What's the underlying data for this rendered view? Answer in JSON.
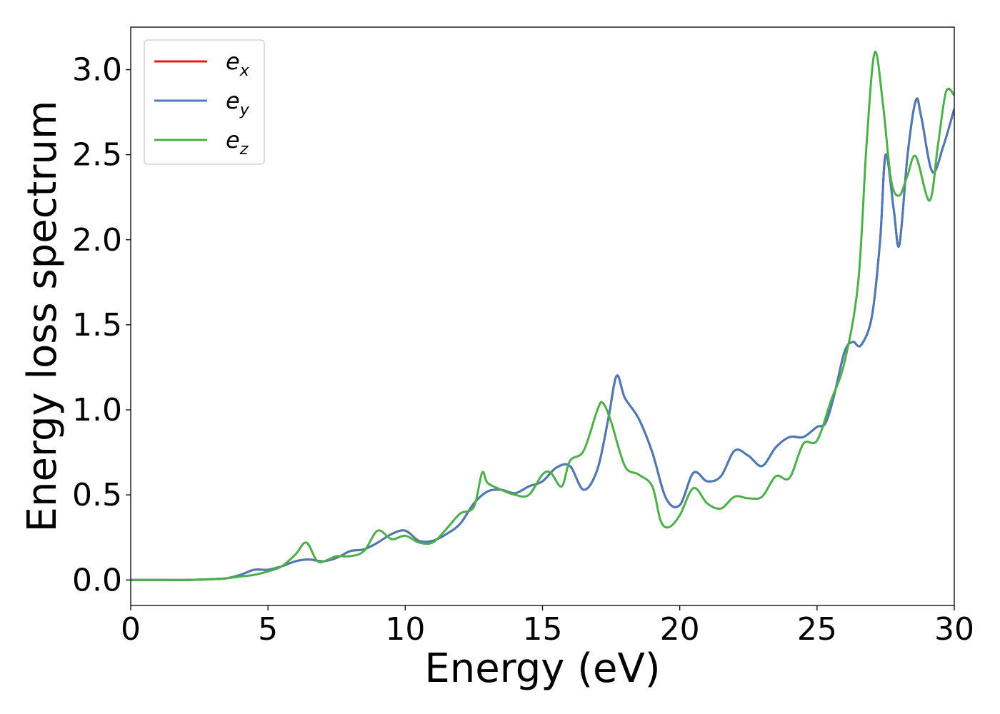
{
  "chart_data": {
    "type": "line",
    "xlabel": "Energy (eV)",
    "ylabel": "Energy loss spectrum",
    "xlim": [
      0,
      30
    ],
    "ylim": [
      -0.15,
      3.25
    ],
    "xticks": [
      "0",
      "5",
      "10",
      "15",
      "20",
      "25",
      "30"
    ],
    "yticks": [
      "0.0",
      "0.5",
      "1.0",
      "1.5",
      "2.0",
      "2.5",
      "3.0"
    ],
    "grid": false,
    "legend_position": "top-left",
    "series": [
      {
        "name": "e_x",
        "label_main": "e",
        "label_sub": "x",
        "color": "#e41a1c",
        "x": [
          0,
          1,
          2,
          3,
          3.5,
          4,
          4.5,
          5,
          5.5,
          6,
          6.5,
          7,
          7.5,
          8,
          8.5,
          9,
          9.5,
          10,
          10.5,
          11,
          11.5,
          12,
          12.5,
          13,
          13.5,
          14,
          14.5,
          15,
          15.5,
          16,
          16.5,
          17,
          17.4,
          17.7,
          18,
          18.5,
          19,
          19.5,
          20,
          20.5,
          21,
          21.5,
          22,
          22.5,
          23,
          23.5,
          24,
          24.5,
          25,
          25.3,
          25.6,
          26,
          26.3,
          26.6,
          27,
          27.3,
          27.5,
          27.8,
          28,
          28.3,
          28.6,
          28.8,
          29.2,
          29.6,
          30
        ],
        "y": [
          0.0,
          0.0,
          0.0,
          0.005,
          0.01,
          0.03,
          0.06,
          0.06,
          0.08,
          0.11,
          0.12,
          0.11,
          0.13,
          0.17,
          0.18,
          0.22,
          0.27,
          0.29,
          0.23,
          0.23,
          0.27,
          0.33,
          0.45,
          0.52,
          0.53,
          0.51,
          0.55,
          0.58,
          0.66,
          0.67,
          0.53,
          0.65,
          0.95,
          1.2,
          1.07,
          0.95,
          0.75,
          0.48,
          0.44,
          0.63,
          0.58,
          0.61,
          0.76,
          0.73,
          0.67,
          0.78,
          0.84,
          0.84,
          0.9,
          0.92,
          1.07,
          1.34,
          1.4,
          1.38,
          1.55,
          2.0,
          2.5,
          2.17,
          1.97,
          2.5,
          2.82,
          2.72,
          2.4,
          2.55,
          2.77
        ]
      },
      {
        "name": "e_y",
        "label_main": "e",
        "label_sub": "y",
        "color": "#4a7bb7",
        "x": [
          0,
          1,
          2,
          3,
          3.5,
          4,
          4.5,
          5,
          5.5,
          6,
          6.5,
          7,
          7.5,
          8,
          8.5,
          9,
          9.5,
          10,
          10.5,
          11,
          11.5,
          12,
          12.5,
          13,
          13.5,
          14,
          14.5,
          15,
          15.5,
          16,
          16.5,
          17,
          17.4,
          17.7,
          18,
          18.5,
          19,
          19.5,
          20,
          20.5,
          21,
          21.5,
          22,
          22.5,
          23,
          23.5,
          24,
          24.5,
          25,
          25.3,
          25.6,
          26,
          26.3,
          26.6,
          27,
          27.3,
          27.5,
          27.8,
          28,
          28.3,
          28.6,
          28.8,
          29.2,
          29.6,
          30
        ],
        "y": [
          0.0,
          0.0,
          0.0,
          0.005,
          0.01,
          0.03,
          0.06,
          0.06,
          0.08,
          0.11,
          0.12,
          0.11,
          0.13,
          0.17,
          0.18,
          0.22,
          0.27,
          0.29,
          0.23,
          0.23,
          0.27,
          0.33,
          0.45,
          0.52,
          0.53,
          0.51,
          0.55,
          0.58,
          0.66,
          0.67,
          0.53,
          0.65,
          0.95,
          1.2,
          1.07,
          0.95,
          0.75,
          0.48,
          0.44,
          0.63,
          0.58,
          0.61,
          0.76,
          0.73,
          0.67,
          0.78,
          0.84,
          0.84,
          0.9,
          0.92,
          1.07,
          1.34,
          1.4,
          1.38,
          1.55,
          2.0,
          2.5,
          2.17,
          1.97,
          2.5,
          2.82,
          2.72,
          2.4,
          2.55,
          2.77
        ]
      },
      {
        "name": "e_z",
        "label_main": "e",
        "label_sub": "z",
        "color": "#4daf4a",
        "x": [
          0,
          1,
          2,
          3,
          3.5,
          4,
          4.5,
          5,
          5.5,
          6,
          6.4,
          6.8,
          7.2,
          7.5,
          8,
          8.5,
          9,
          9.5,
          10,
          10.5,
          11,
          11.5,
          12,
          12.5,
          12.8,
          13,
          13.5,
          14,
          14.5,
          15,
          15.3,
          15.7,
          16,
          16.5,
          17,
          17.2,
          17.5,
          18,
          18.5,
          19,
          19.3,
          19.6,
          20,
          20.5,
          21,
          21.5,
          22,
          22.5,
          23,
          23.5,
          24,
          24.5,
          25,
          25.5,
          26,
          26.5,
          26.8,
          27.1,
          27.4,
          27.7,
          28,
          28.3,
          28.6,
          29.1,
          29.4,
          29.7,
          30
        ],
        "y": [
          0.0,
          0.0,
          0.0,
          0.005,
          0.01,
          0.02,
          0.03,
          0.05,
          0.08,
          0.15,
          0.22,
          0.11,
          0.12,
          0.14,
          0.14,
          0.17,
          0.29,
          0.24,
          0.26,
          0.22,
          0.22,
          0.3,
          0.39,
          0.43,
          0.63,
          0.57,
          0.53,
          0.5,
          0.5,
          0.62,
          0.63,
          0.55,
          0.7,
          0.76,
          1.0,
          1.04,
          0.93,
          0.67,
          0.62,
          0.55,
          0.35,
          0.31,
          0.38,
          0.54,
          0.45,
          0.42,
          0.49,
          0.48,
          0.49,
          0.61,
          0.6,
          0.8,
          0.82,
          1.05,
          1.28,
          1.75,
          2.55,
          3.1,
          2.8,
          2.35,
          2.26,
          2.38,
          2.49,
          2.23,
          2.55,
          2.87,
          2.85
        ]
      }
    ]
  }
}
